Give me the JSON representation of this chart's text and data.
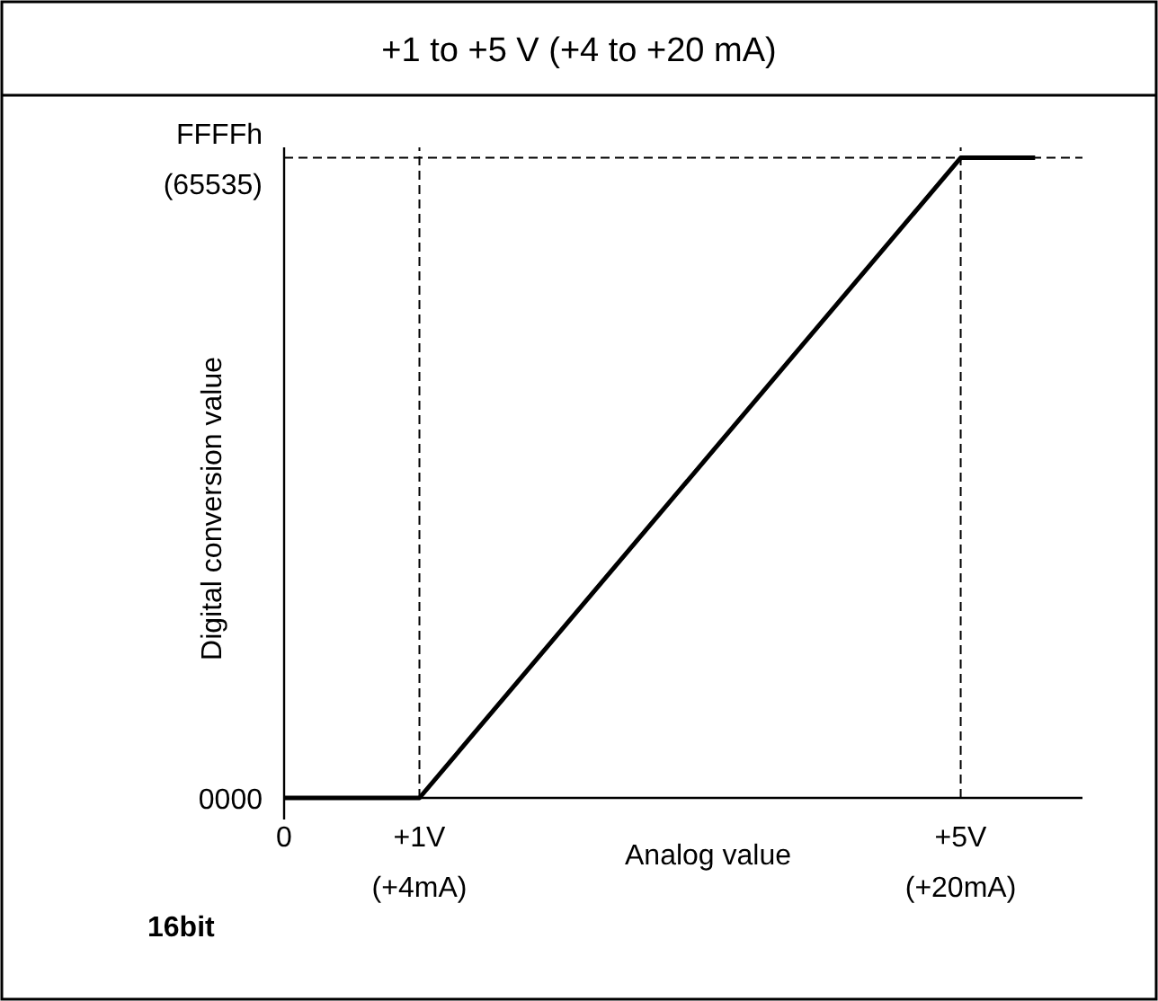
{
  "chart_data": {
    "type": "line",
    "title": "+1 to +5 V (+4 to +20 mA)",
    "xlabel": "Analog value",
    "ylabel": "Digital conversion value",
    "x": [
      0,
      1,
      5,
      5.55
    ],
    "series": [
      {
        "color": "#000000",
        "values": [
          0,
          0,
          65535,
          65535
        ]
      }
    ],
    "xlim": [
      0,
      5.9
    ],
    "ylim": [
      0,
      66600
    ],
    "xticks": [
      {
        "value": 0,
        "label": "0"
      },
      {
        "value": 1,
        "label": "+1V"
      },
      {
        "value": 5,
        "label": "+5V"
      }
    ],
    "yticks": [
      {
        "value": 0,
        "label": "0000"
      },
      {
        "value": 65535,
        "label": "FFFFh\n(65535)"
      }
    ],
    "ref_lines": [
      {
        "axis": "x",
        "value": 1,
        "line_style": "dashed",
        "color": "#000000"
      },
      {
        "axis": "x",
        "value": 5,
        "line_style": "dashed",
        "color": "#000000"
      },
      {
        "axis": "y",
        "value": 65535,
        "line_style": "dashed",
        "color": "#000000"
      }
    ],
    "annotations": [
      "16bit",
      "(+4mA)",
      "(+20mA)"
    ],
    "grid": false,
    "line_style": "solid"
  }
}
